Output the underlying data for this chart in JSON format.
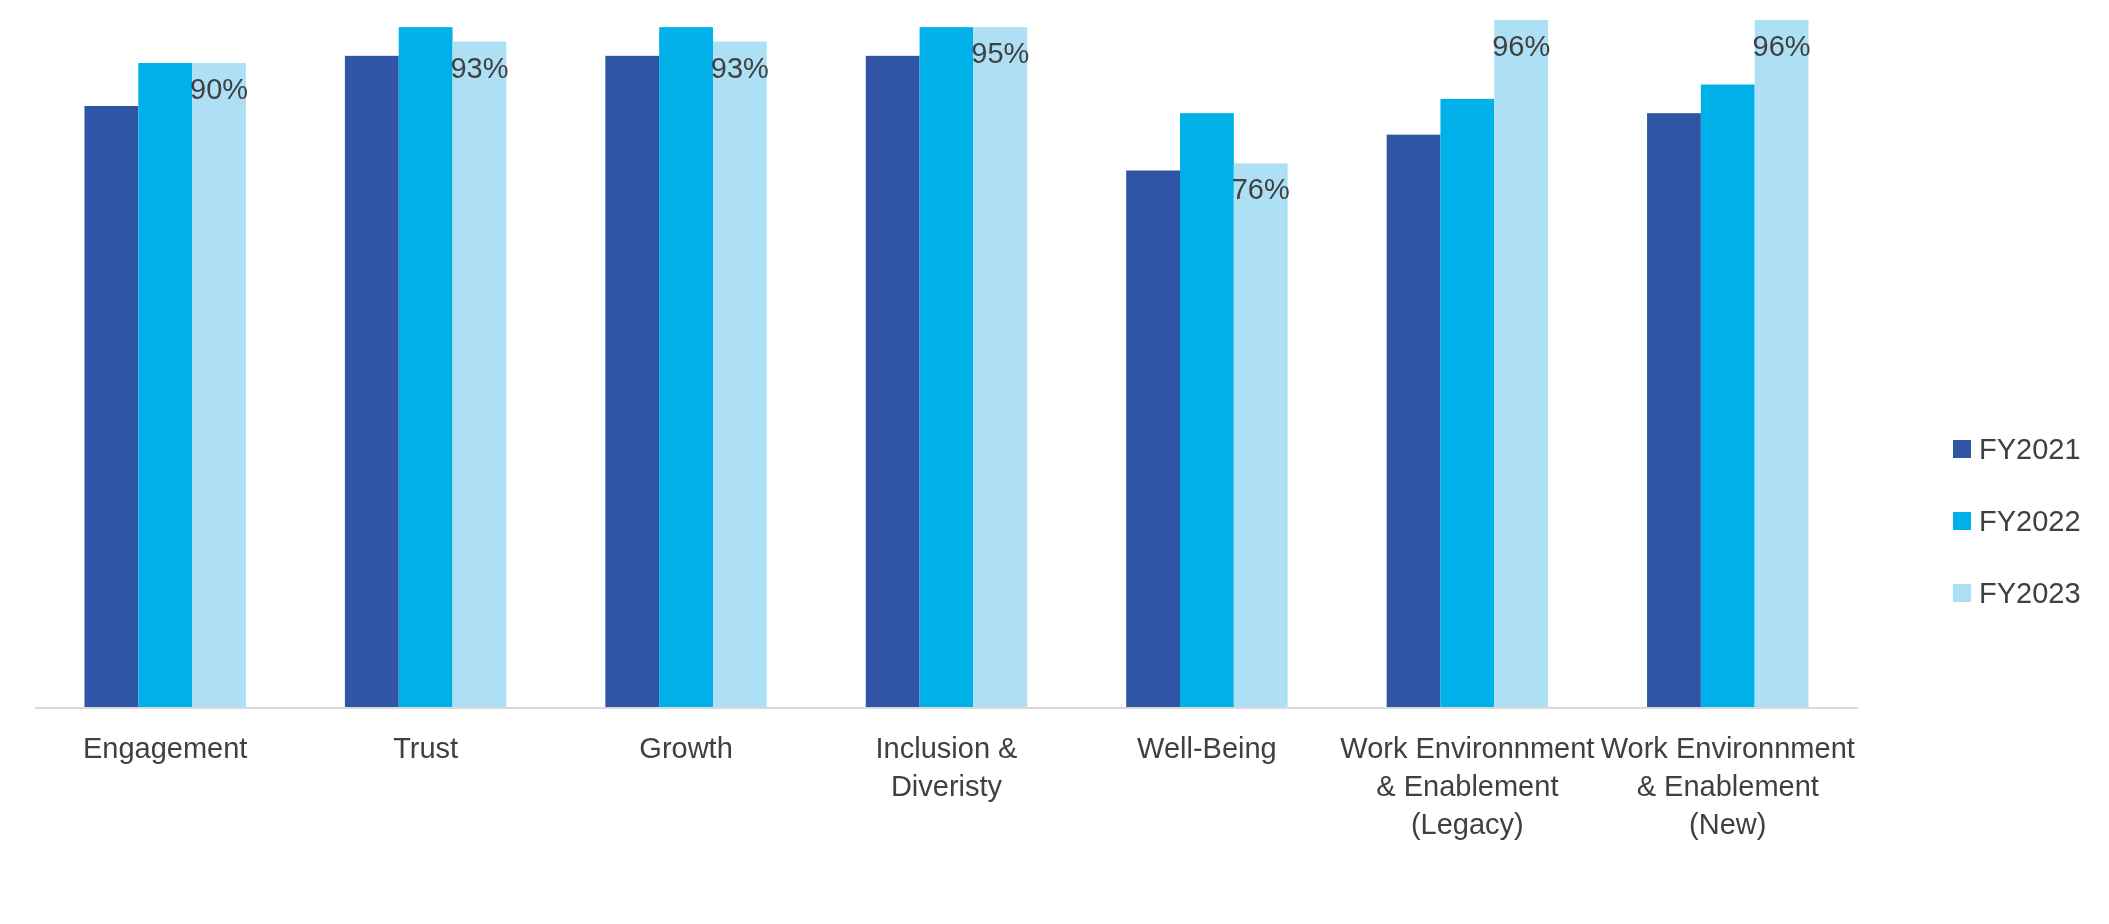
{
  "chart_data": {
    "type": "bar",
    "categories": [
      "Engagement",
      "Trust",
      "Growth",
      "Inclusion & Diveristy",
      "Well-Being",
      "Work Environnment & Enablement (Legacy)",
      "Work Environnment & Enablement (New)"
    ],
    "series": [
      {
        "name": "FY2021",
        "color": "#2f55a4",
        "values": [
          84,
          91,
          91,
          91,
          75,
          80,
          83
        ]
      },
      {
        "name": "FY2022",
        "color": "#00b0e8",
        "values": [
          90,
          95,
          95,
          95,
          83,
          85,
          87
        ]
      },
      {
        "name": "FY2023",
        "color": "#aee0f5",
        "values": [
          90,
          93,
          93,
          95,
          76,
          96,
          96
        ],
        "value_labels": [
          "90%",
          "93%",
          "93%",
          "95%",
          "76%",
          "96%",
          "96%"
        ]
      }
    ],
    "legend": "right"
  }
}
